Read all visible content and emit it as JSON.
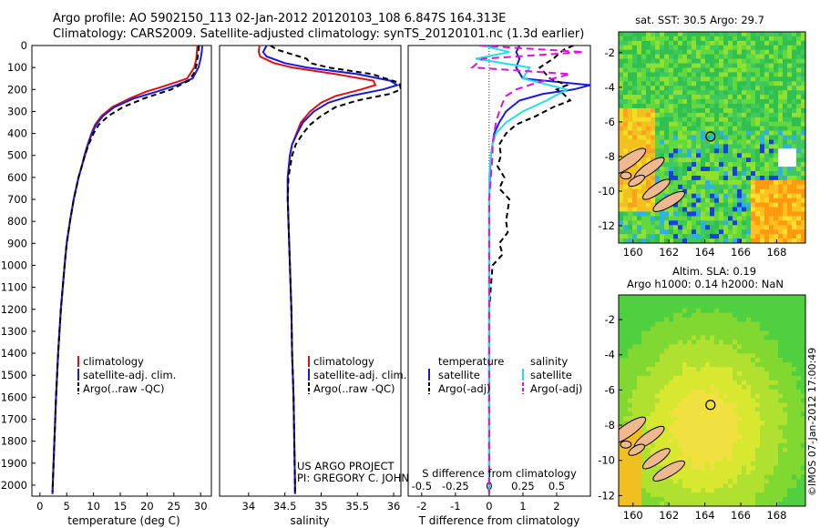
{
  "header": {
    "line1": "Argo profile: AO 5902150_113 02-Jan-2012 20120103_108 6.847S 164.313E",
    "line2": "Climatology: CARS2009. Satellite-adjusted climatology: synTS_20120101.nc (1.3d earlier)"
  },
  "colors": {
    "climatology": "#e01010",
    "satellite": "#1a1adf",
    "argo": "#000000",
    "sal_sat": "#22e0e8",
    "sal_argo": "#e010e0"
  },
  "pressure_axis": {
    "min": 0,
    "max": 2050,
    "ticks": [
      0,
      100,
      200,
      300,
      400,
      500,
      600,
      700,
      800,
      900,
      1000,
      1100,
      1200,
      1300,
      1400,
      1500,
      1600,
      1700,
      1800,
      1900,
      2000
    ]
  },
  "chart_data": [
    {
      "type": "line",
      "id": "temperature",
      "xlabel": "temperature (deg C)",
      "xlim": [
        -1.5,
        32
      ],
      "xticks": [
        0,
        5,
        10,
        15,
        20,
        25,
        30
      ],
      "legend": [
        "climatology",
        "satellite-adj. clim.",
        "Argo(..raw -QC)"
      ],
      "series": [
        {
          "name": "climatology",
          "color": "climatology",
          "dash": "",
          "p": [
            0,
            30,
            60,
            100,
            150,
            190,
            210,
            240,
            280,
            320,
            360,
            400,
            450,
            500,
            550,
            600,
            700,
            800,
            900,
            1000,
            1200,
            1400,
            1600,
            1800,
            2000,
            2040
          ],
          "v": [
            29.4,
            29.3,
            29.2,
            28.8,
            27.5,
            22.5,
            19.8,
            16.8,
            13.5,
            11.5,
            10.3,
            9.6,
            8.9,
            8.3,
            7.8,
            7.2,
            6.3,
            5.6,
            5.0,
            4.6,
            3.9,
            3.4,
            3.0,
            2.7,
            2.4,
            2.35
          ]
        },
        {
          "name": "satellite",
          "color": "satellite",
          "dash": "",
          "p": [
            0,
            30,
            60,
            100,
            150,
            180,
            210,
            240,
            280,
            320,
            360,
            400,
            450,
            500,
            550,
            600,
            700,
            800,
            900,
            1000,
            1200,
            1400,
            1600,
            1800,
            2000,
            2040
          ],
          "v": [
            30.3,
            30.2,
            30.0,
            29.6,
            28.5,
            25.5,
            21.8,
            17.6,
            13.9,
            11.8,
            10.5,
            9.7,
            9.0,
            8.4,
            7.8,
            7.2,
            6.3,
            5.6,
            5.0,
            4.6,
            3.9,
            3.4,
            3.0,
            2.7,
            2.4,
            2.35
          ]
        },
        {
          "name": "argo",
          "color": "argo",
          "dash": "6,4",
          "p": [
            0,
            20,
            40,
            80,
            120,
            160,
            200,
            240,
            280,
            320,
            360,
            400,
            450,
            500,
            550,
            600,
            700,
            800,
            900,
            1000,
            1200,
            1400,
            1600,
            1800,
            2000,
            2030
          ],
          "v": [
            29.7,
            29.6,
            29.5,
            29.3,
            28.9,
            27.8,
            24.5,
            19.5,
            15.5,
            12.8,
            11.0,
            10.0,
            9.1,
            8.4,
            7.8,
            7.2,
            6.3,
            5.6,
            5.0,
            4.6,
            3.9,
            3.4,
            3.0,
            2.7,
            2.4,
            2.35
          ]
        }
      ]
    },
    {
      "type": "line",
      "id": "salinity",
      "xlabel": "salinity",
      "xlim": [
        33.6,
        36.1
      ],
      "xticks": [
        34,
        34.5,
        35,
        35.5,
        36
      ],
      "legend": [
        "climatology",
        "satellite-adj. clim.",
        "Argo(..raw -QC)"
      ],
      "series": [
        {
          "name": "climatology",
          "color": "climatology",
          "dash": "",
          "p": [
            0,
            30,
            50,
            80,
            100,
            130,
            160,
            180,
            200,
            230,
            260,
            300,
            350,
            400,
            450,
            500,
            600,
            700,
            800,
            900,
            1000,
            1200,
            1400,
            1600,
            1800,
            2000,
            2040
          ],
          "v": [
            34.15,
            34.14,
            34.16,
            34.35,
            34.6,
            35.2,
            35.72,
            35.75,
            35.55,
            35.2,
            35.0,
            34.85,
            34.72,
            34.66,
            34.6,
            34.57,
            34.54,
            34.54,
            34.55,
            34.56,
            34.57,
            34.59,
            34.6,
            34.62,
            34.63,
            34.64,
            34.64
          ]
        },
        {
          "name": "satellite",
          "color": "satellite",
          "dash": "",
          "p": [
            0,
            30,
            50,
            80,
            100,
            130,
            160,
            180,
            200,
            230,
            260,
            300,
            350,
            400,
            450,
            500,
            600,
            700,
            800,
            900,
            1000,
            1200,
            1400,
            1600,
            1800,
            2000,
            2040
          ],
          "v": [
            34.25,
            34.2,
            34.25,
            34.5,
            34.8,
            35.5,
            35.95,
            36.05,
            35.85,
            35.4,
            35.1,
            34.9,
            34.75,
            34.67,
            34.6,
            34.57,
            34.54,
            34.54,
            34.55,
            34.56,
            34.57,
            34.59,
            34.6,
            34.62,
            34.63,
            34.64,
            34.64
          ]
        },
        {
          "name": "argo",
          "color": "argo",
          "dash": "6,4",
          "p": [
            0,
            20,
            40,
            60,
            80,
            100,
            130,
            170,
            200,
            220,
            250,
            280,
            320,
            360,
            400,
            450,
            500,
            600,
            700,
            800,
            900,
            1000,
            1200,
            1400,
            1600,
            1800,
            2000,
            2030
          ],
          "v": [
            34.3,
            34.4,
            34.6,
            34.8,
            34.85,
            35.1,
            35.7,
            36.08,
            36.1,
            35.95,
            35.5,
            35.2,
            35.0,
            34.85,
            34.75,
            34.65,
            34.6,
            34.55,
            34.54,
            34.55,
            34.56,
            34.57,
            34.59,
            34.6,
            34.62,
            34.63,
            34.64,
            34.64
          ]
        }
      ]
    },
    {
      "type": "line",
      "id": "difference",
      "xlabel_top": "S difference from climatology",
      "xlabel_bottom": "T difference from climatology",
      "xlim": [
        -2.4,
        3.0
      ],
      "xticks_bottom": [
        -2,
        -1,
        0,
        1,
        2
      ],
      "xticks_top": [
        "-0.5",
        "-0.25",
        "0",
        "0.25",
        "0.5"
      ],
      "xticks_top_pos": [
        -2,
        -1,
        0,
        1,
        2
      ],
      "legend_left_title": "temperature",
      "legend_left": [
        "satellite",
        "Argo(-adj)"
      ],
      "legend_right_title": "salinity",
      "legend_right": [
        "satellite",
        "Argo(-adj)"
      ],
      "series": [
        {
          "name": "temp satellite",
          "color": "satellite",
          "dash": "",
          "p": [
            0,
            30,
            60,
            100,
            150,
            180,
            200,
            220,
            250,
            300,
            350,
            400,
            450,
            500,
            600,
            700,
            800,
            900,
            1000,
            1200,
            1400,
            1600,
            1800,
            2000,
            2040
          ],
          "v": [
            0.9,
            0.8,
            0.9,
            0.8,
            1.0,
            3.0,
            2.5,
            1.6,
            0.9,
            0.5,
            0.3,
            0.15,
            0.1,
            0.05,
            0.02,
            0.0,
            0.0,
            0.0,
            0.0,
            0.0,
            0.0,
            0.0,
            0.0,
            0.0,
            0.0
          ]
        },
        {
          "name": "temp argo",
          "color": "argo",
          "dash": "6,4",
          "p": [
            0,
            20,
            60,
            100,
            150,
            180,
            200,
            220,
            250,
            280,
            320,
            360,
            400,
            450,
            500,
            550,
            600,
            650,
            700,
            800,
            850,
            900,
            950,
            1000,
            1200,
            1400,
            1600,
            1800,
            2000,
            2040
          ],
          "v": [
            2.5,
            2.2,
            1.9,
            1.5,
            1.8,
            2.3,
            2.0,
            2.2,
            2.4,
            1.9,
            1.4,
            0.8,
            0.5,
            0.3,
            0.35,
            0.25,
            0.45,
            0.3,
            0.6,
            0.5,
            0.55,
            0.3,
            0.4,
            0.1,
            0.0,
            0.0,
            0.0,
            0.0,
            0.0,
            0.0
          ]
        },
        {
          "name": "sal satellite",
          "color": "sal_sat",
          "dash": "",
          "p": [
            0,
            30,
            60,
            100,
            150,
            200,
            250,
            300,
            350,
            400,
            450,
            500,
            600,
            700,
            800,
            900,
            1000,
            1200,
            1400,
            1600,
            1800,
            2000,
            2040
          ],
          "v": [
            -0.2,
            0.6,
            -0.4,
            1.2,
            1.0,
            2.3,
            1.7,
            1.0,
            0.5,
            0.2,
            0.1,
            0.05,
            0.0,
            0.0,
            0.0,
            0.0,
            0.0,
            0.0,
            0.0,
            0.0,
            0.0,
            0.0,
            0.0
          ]
        },
        {
          "name": "sal argo",
          "color": "sal_argo",
          "dash": "8,5",
          "p": [
            0,
            30,
            60,
            100,
            130,
            170,
            200,
            230,
            260,
            300,
            350,
            400,
            450,
            500,
            600,
            700,
            800,
            900,
            1000,
            1200,
            1400,
            1600,
            1800,
            2000,
            2040
          ],
          "v": [
            -0.3,
            2.8,
            -0.2,
            -0.5,
            2.4,
            1.4,
            0.8,
            0.5,
            0.4,
            0.3,
            0.2,
            0.15,
            0.1,
            0.1,
            0.05,
            0.0,
            0.0,
            0.0,
            0.0,
            0.0,
            0.0,
            0.0,
            0.0,
            0.0,
            0.0
          ]
        }
      ]
    },
    {
      "type": "heatmap",
      "id": "sst_map",
      "title": "sat. SST: 30.5 Argo: 29.7",
      "xlim": [
        159.2,
        169.6
      ],
      "ylim": [
        -13,
        -0.8
      ],
      "xticks": [
        160,
        162,
        164,
        166,
        168
      ],
      "yticks": [
        -2,
        -4,
        -6,
        -8,
        -10,
        -12
      ],
      "marker": {
        "lon": 164.313,
        "lat": -6.847
      }
    },
    {
      "type": "heatmap",
      "id": "sla_map",
      "title_line1": "Altim. SLA: 0.19",
      "title_line2": "Argo h1000: 0.14 h2000: NaN",
      "xlim": [
        159.2,
        169.6
      ],
      "ylim": [
        -12.6,
        -0.6
      ],
      "xticks": [
        160,
        162,
        164,
        166,
        168
      ],
      "yticks": [
        -2,
        -4,
        -6,
        -8,
        -10,
        -12
      ],
      "marker": {
        "lon": 164.313,
        "lat": -6.847
      }
    }
  ],
  "credits": {
    "line1": "US ARGO PROJECT",
    "line2": "PI: GREGORY C. JOHNSON",
    "stamp": "©IMOS 07-Jan-2012 17:00:49"
  }
}
